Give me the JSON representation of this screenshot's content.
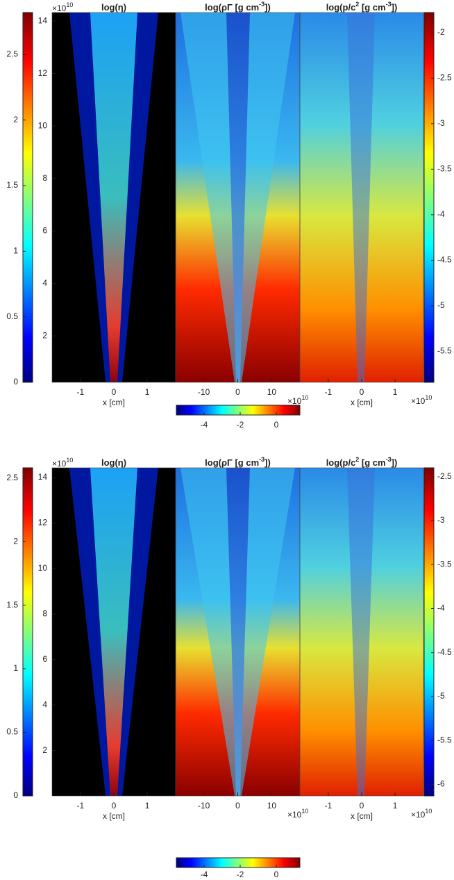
{
  "panels": [
    {
      "y_axis": {
        "exponent": "×10",
        "exponent_power": "10",
        "lim": [
          0.23,
          14.32
        ],
        "ticks": [
          2,
          4,
          6,
          8,
          10,
          12,
          14
        ]
      },
      "colorbar_left": {
        "lim": [
          0,
          2.82
        ],
        "ticks": [
          0,
          0.5,
          1,
          1.5,
          2,
          2.5
        ]
      },
      "subplots": [
        {
          "title_parts": [
            "log(η)"
          ],
          "xlim": [
            -1.85,
            1.85
          ],
          "xticks": [
            -1,
            0,
            1
          ],
          "xlabel": "x [cm]"
        },
        {
          "title_parts": [
            "log(ρΓ [g cm",
            "-3",
            "])"
          ],
          "xlim": [
            -18.3,
            18.3
          ],
          "xticks": [
            -10,
            0,
            10
          ],
          "x_exponent": "×10",
          "x_exponent_power": "10"
        },
        {
          "title_parts": [
            "log(p/c",
            "2",
            " [g cm",
            "-3",
            "])"
          ],
          "xlim": [
            -1.85,
            1.85
          ],
          "xticks": [
            -1,
            0,
            1
          ],
          "xlabel": "x [cm]",
          "x_exponent": "×10",
          "x_exponent_power": "10"
        }
      ],
      "colorbar_bottom": {
        "lim": [
          -5.54,
          1.31
        ],
        "ticks": [
          -4,
          -2,
          0
        ]
      },
      "colorbar_right": {
        "lim": [
          -5.84,
          -1.78
        ],
        "ticks": [
          -5.5,
          -5,
          -4.5,
          -4,
          -3.5,
          -3,
          -2.5,
          -2
        ]
      }
    },
    {
      "y_axis": {
        "exponent": "×10",
        "exponent_power": "10",
        "lim": [
          0,
          14.43
        ],
        "ticks": [
          2,
          4,
          6,
          8,
          10,
          12,
          14
        ]
      },
      "colorbar_left": {
        "lim": [
          0,
          2.58
        ],
        "ticks": [
          0,
          0.5,
          1,
          1.5,
          2,
          2.5
        ]
      },
      "subplots": [
        {
          "title_parts": [
            "log(η)"
          ],
          "xlim": [
            -1.85,
            1.85
          ],
          "xticks": [
            -1,
            0,
            1
          ],
          "xlabel": "x [cm]"
        },
        {
          "title_parts": [
            "log(ρΓ [g cm",
            "-3",
            "])"
          ],
          "xlim": [
            -18.3,
            18.3
          ],
          "xticks": [
            -10,
            0,
            10
          ],
          "x_exponent": "×10",
          "x_exponent_power": "10"
        },
        {
          "title_parts": [
            "log(p/c",
            "2",
            " [g cm",
            "-3",
            "])"
          ],
          "xlim": [
            -1.85,
            1.85
          ],
          "xticks": [
            -1,
            0,
            1
          ],
          "xlabel": "x [cm]",
          "x_exponent": "×10",
          "x_exponent_power": "10"
        }
      ],
      "colorbar_bottom": {
        "lim": [
          -5.54,
          1.31
        ],
        "ticks": [
          -4,
          -2,
          0
        ]
      },
      "colorbar_right": {
        "lim": [
          -6.13,
          -2.4
        ],
        "ticks": [
          -6,
          -5.5,
          -5,
          -4.5,
          -4,
          -3.5,
          -3,
          -2.5
        ]
      }
    }
  ]
}
